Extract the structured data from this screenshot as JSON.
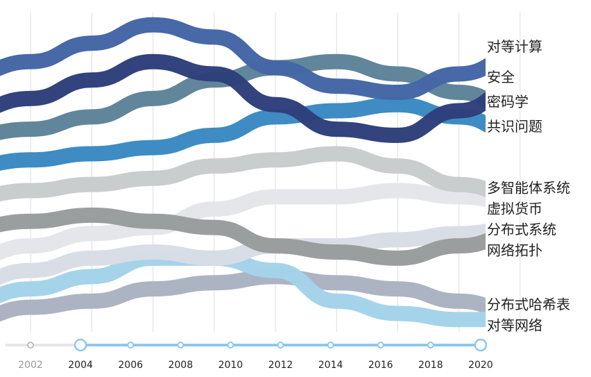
{
  "chart_data": {
    "type": "line",
    "x": [
      "2002",
      "2004",
      "2006",
      "2008",
      "2010",
      "2012",
      "2014",
      "2016",
      "2018",
      "2020"
    ],
    "series": [
      {
        "name": "分布式哈希表",
        "color": "#aab3c2",
        "values": [
          2.0,
          2.2,
          2.3,
          2.5,
          2.6,
          2.7,
          2.6,
          2.5,
          2.3,
          2.1
        ]
      },
      {
        "name": "对等网络",
        "color": "#a3d3ea",
        "values": [
          2.3,
          2.5,
          2.7,
          3.0,
          3.0,
          2.8,
          2.3,
          2.1,
          2.0,
          2.0
        ]
      },
      {
        "name": "分布式系统",
        "color": "#d8dde5",
        "values": [
          2.6,
          2.8,
          3.0,
          3.1,
          3.0,
          3.2,
          3.2,
          3.3,
          3.4,
          3.5
        ]
      },
      {
        "name": "虚拟货币",
        "color": "#e4e6ea",
        "values": [
          3.0,
          3.2,
          3.4,
          3.5,
          3.8,
          4.0,
          4.0,
          4.1,
          4.0,
          3.9
        ]
      },
      {
        "name": "网络拓扑",
        "color": "#999c9c",
        "values": [
          3.5,
          3.6,
          3.7,
          3.6,
          3.5,
          3.2,
          3.1,
          3.0,
          3.2,
          3.4
        ]
      },
      {
        "name": "多智能体系统",
        "color": "#c8cccd",
        "values": [
          4.0,
          4.1,
          4.2,
          4.3,
          4.5,
          4.6,
          4.7,
          4.5,
          4.2,
          4.0
        ]
      },
      {
        "name": "共识问题",
        "color": "#3a8ac2",
        "values": [
          4.5,
          4.6,
          4.7,
          4.8,
          5.0,
          5.3,
          5.4,
          5.5,
          5.3,
          5.0
        ]
      },
      {
        "name": "密码学",
        "color": "#5e8499",
        "values": [
          5.0,
          5.1,
          5.3,
          5.6,
          5.9,
          6.1,
          6.2,
          6.0,
          5.7,
          5.4
        ]
      },
      {
        "name": "安全",
        "color": "#2e3f7a",
        "values": [
          5.4,
          5.6,
          5.9,
          6.2,
          6.0,
          5.5,
          5.1,
          5.0,
          5.4,
          5.8
        ]
      },
      {
        "name": "对等计算",
        "color": "#4466a6",
        "values": [
          6.0,
          6.2,
          6.5,
          6.8,
          6.6,
          6.1,
          5.8,
          5.7,
          6.0,
          6.3
        ]
      }
    ],
    "timeline": {
      "labels": [
        "2002",
        "2004",
        "2006",
        "2008",
        "2010",
        "2012",
        "2014",
        "2016",
        "2018",
        "2020"
      ],
      "range_start": "2004",
      "range_end": "2020",
      "active_color": "#8cc8f0",
      "inactive_color": "#e6e6e6"
    }
  }
}
